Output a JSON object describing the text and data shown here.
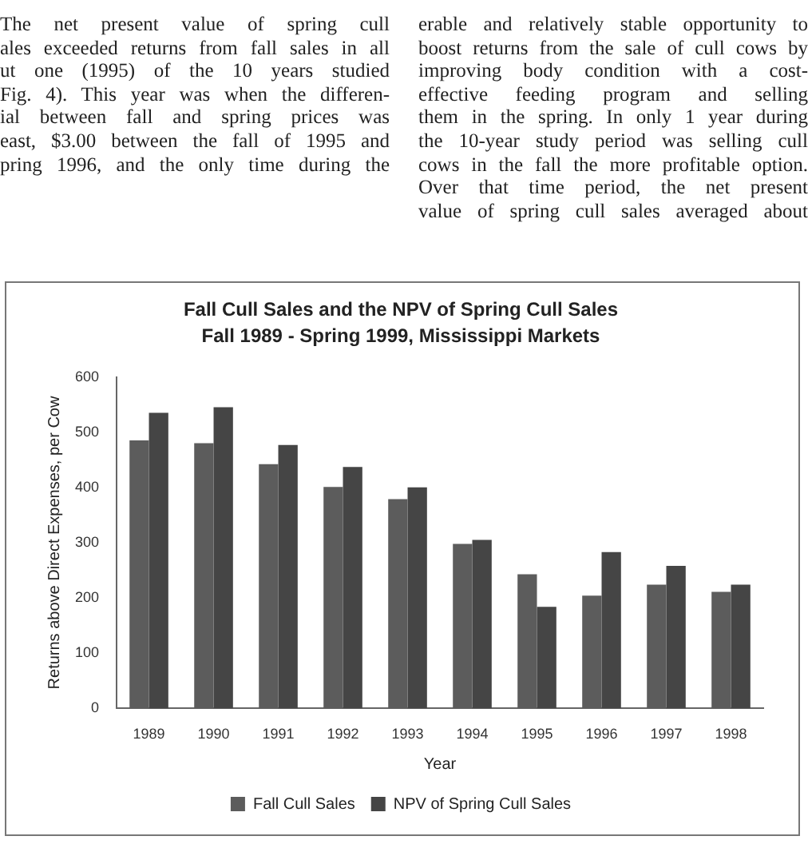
{
  "chart_data": {
    "type": "bar",
    "title": "Fall Cull Sales and the NPV of Spring Cull Sales",
    "subtitle": "Fall 1989 - Spring 1999, Mississippi Markets",
    "xlabel": "Year",
    "ylabel": "Returns above Direct Expenses, per Cow",
    "categories": [
      "1989",
      "1990",
      "1991",
      "1992",
      "1993",
      "1994",
      "1995",
      "1996",
      "1997",
      "1998"
    ],
    "series": [
      {
        "name": "Fall Cull Sales",
        "color": "#5c5c5c",
        "values": [
          485,
          480,
          442,
          401,
          379,
          298,
          243,
          204,
          224,
          211
        ]
      },
      {
        "name": "NPV of Spring Cull Sales",
        "color": "#454545",
        "values": [
          535,
          545,
          477,
          437,
          400,
          305,
          184,
          283,
          258,
          224
        ]
      }
    ],
    "ylim": [
      0,
      600
    ],
    "yticks": [
      0,
      100,
      200,
      300,
      400,
      500,
      600
    ],
    "grid": false,
    "legend": "bottom",
    "annotations": [
      "The net present value of spring cull\nales exceeded returns from fall sales in all\nut one (1995) of the 10 years studied\nFig. 4). This year was when the differen-\nial between fall and spring prices was\neast, $3.00 between the fall of 1995 and\npring 1996, and the only time during the",
      "erable and relatively stable opportunity to\nboost returns from the sale of cull cows by\nimproving body condition with a cost-\neffective feeding program and selling\nthem in the spring. In only 1 year during\nthe 10-year study period was selling cull\ncows in the fall the more profitable option.\nOver that time period, the net present\nvalue of spring cull sales averaged about"
    ]
  }
}
